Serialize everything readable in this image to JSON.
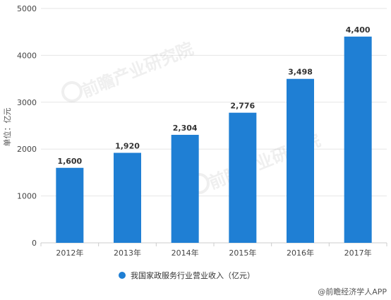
{
  "chart_data": {
    "type": "bar",
    "categories": [
      "2012年",
      "2013年",
      "2014年",
      "2015年",
      "2016年",
      "2017年"
    ],
    "series": [
      {
        "name": "我国家政服务行业营业收入（亿元）",
        "values": [
          1600,
          1920,
          2304,
          2776,
          3498,
          4400
        ],
        "color": "#1f7fd4"
      }
    ],
    "data_labels": [
      "1,600",
      "1,920",
      "2,304",
      "2,776",
      "3,498",
      "4,400"
    ],
    "ylabel": "单位：亿元",
    "ylim": [
      0,
      5000
    ],
    "yticks": [
      0,
      1000,
      2000,
      3000,
      4000,
      5000
    ],
    "grid": true,
    "legend_position": "bottom"
  },
  "watermark": {
    "brand": "前瞻产业研究院",
    "icon": "qianzhan-logo-icon"
  },
  "caption": "@前瞻经济学人APP"
}
